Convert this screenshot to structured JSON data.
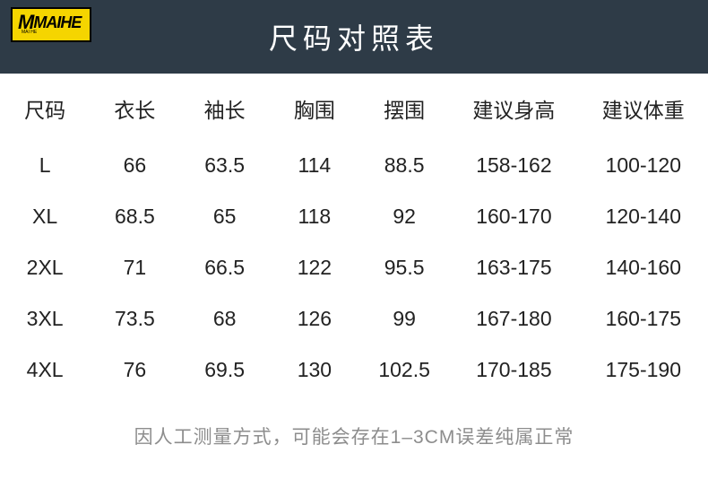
{
  "logo": {
    "text": "MAIHE",
    "prefix": "M",
    "subtitle": "MAI HE"
  },
  "title": "尺码对照表",
  "table": {
    "columns": [
      "尺码",
      "衣长",
      "袖长",
      "胸围",
      "摆围",
      "建议身高",
      "建议体重"
    ],
    "rows": [
      [
        "L",
        "66",
        "63.5",
        "114",
        "88.5",
        "158-162",
        "100-120"
      ],
      [
        "XL",
        "68.5",
        "65",
        "118",
        "92",
        "160-170",
        "120-140"
      ],
      [
        "2XL",
        "71",
        "66.5",
        "122",
        "95.5",
        "163-175",
        "140-160"
      ],
      [
        "3XL",
        "73.5",
        "68",
        "126",
        "99",
        "167-180",
        "160-175"
      ],
      [
        "4XL",
        "76",
        "69.5",
        "130",
        "102.5",
        "170-185",
        "175-190"
      ]
    ]
  },
  "footnote": "因人工测量方式，可能会存在1–3CM误差纯属正常",
  "styles": {
    "title_bg": "#2e3b47",
    "title_color": "#ffffff",
    "body_bg": "#ffffff",
    "text_color": "#222222",
    "footnote_color": "#8d8d8d",
    "logo_bg": "#f5d500",
    "title_fontsize": 32,
    "header_fontsize": 23,
    "cell_fontsize": 23,
    "footnote_fontsize": 21
  }
}
